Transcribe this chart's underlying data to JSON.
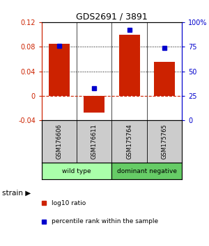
{
  "title": "GDS2691 / 3891",
  "samples": [
    "GSM176606",
    "GSM176611",
    "GSM175764",
    "GSM175765"
  ],
  "log10_ratio": [
    0.085,
    -0.027,
    0.1,
    0.055
  ],
  "percentile_rank": [
    0.76,
    0.33,
    0.92,
    0.74
  ],
  "groups": [
    {
      "label": "wild type",
      "color": "#aaffaa",
      "samples": [
        0,
        1
      ]
    },
    {
      "label": "dominant negative",
      "color": "#66cc66",
      "samples": [
        2,
        3
      ]
    }
  ],
  "bar_color": "#cc2200",
  "dot_color": "#0000cc",
  "ylim_left": [
    -0.04,
    0.12
  ],
  "ylim_right": [
    0.0,
    1.0
  ],
  "yticks_left": [
    -0.04,
    0,
    0.04,
    0.08,
    0.12
  ],
  "yticks_right": [
    0.0,
    0.25,
    0.5,
    0.75,
    1.0
  ],
  "ytick_labels_right": [
    "0",
    "25",
    "50",
    "75",
    "100%"
  ],
  "ytick_labels_left": [
    "-0.04",
    "0",
    "0.04",
    "0.08",
    "0.12"
  ],
  "hlines": [
    0.04,
    0.08
  ],
  "zero_line": 0.0,
  "legend_items": [
    {
      "color": "#cc2200",
      "label": "log10 ratio"
    },
    {
      "color": "#0000cc",
      "label": "percentile rank within the sample"
    }
  ],
  "strain_label": "strain",
  "bar_width": 0.6,
  "background_color": "#ffffff"
}
